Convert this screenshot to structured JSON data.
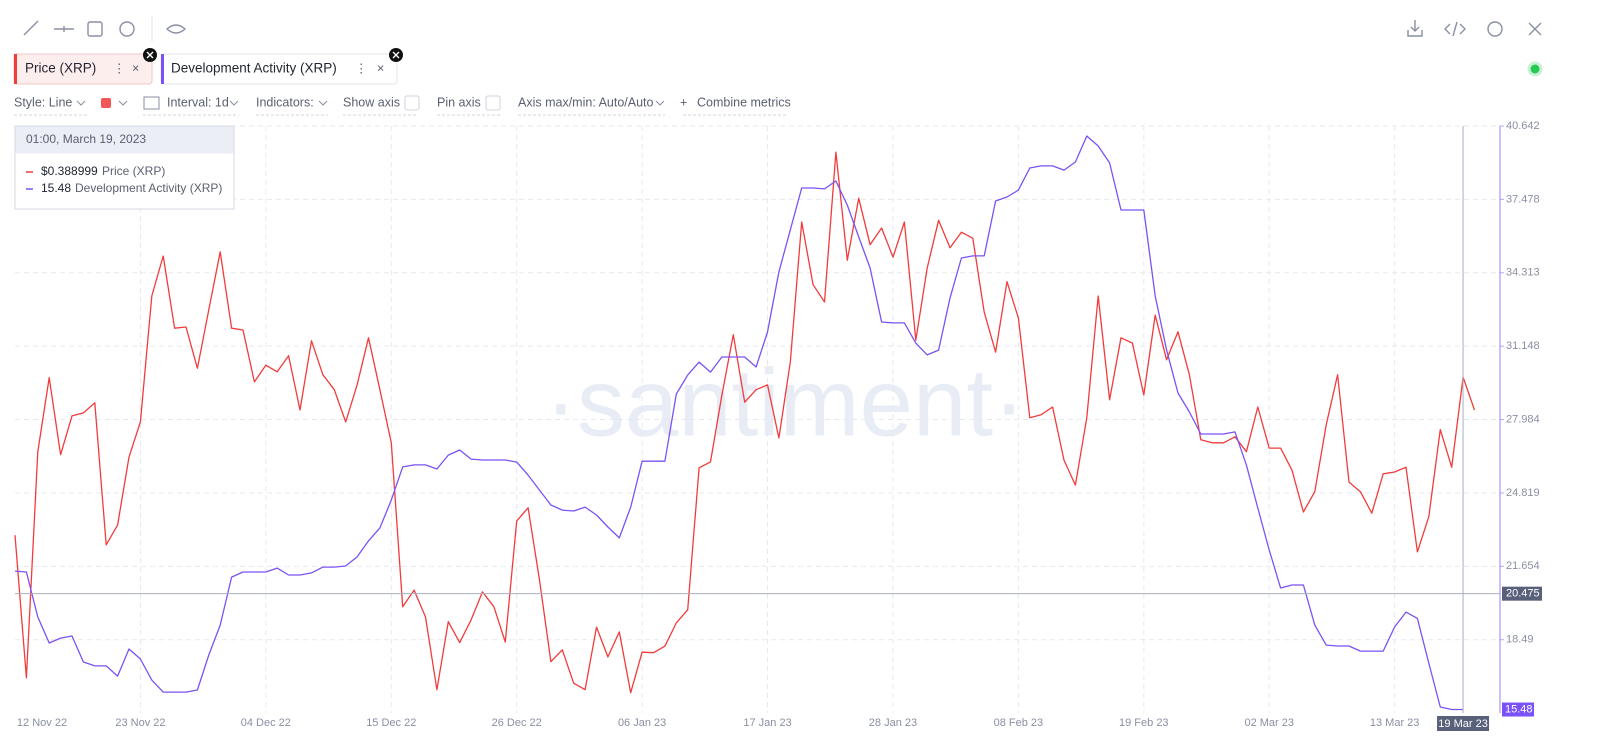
{
  "toolbar": {
    "style": "Style: Line",
    "interval": "Interval: 1d",
    "indicators": "Indicators:",
    "show_axis": "Show axis",
    "pin_axis": "Pin axis",
    "axis_minmax": "Axis max/min: Auto/Auto",
    "combine": "Combine metrics"
  },
  "watermark": "·santiment·",
  "chart_data": {
    "type": "line",
    "categories": [
      "12 Nov 22",
      null,
      null,
      null,
      null,
      null,
      null,
      null,
      null,
      null,
      null,
      "23 Nov 22",
      null,
      null,
      null,
      null,
      null,
      null,
      null,
      null,
      null,
      null,
      "04 Dec 22",
      null,
      null,
      null,
      null,
      null,
      null,
      null,
      null,
      null,
      null,
      "15 Dec 22",
      null,
      null,
      null,
      null,
      null,
      null,
      null,
      null,
      null,
      null,
      "26 Dec 22",
      null,
      null,
      null,
      null,
      null,
      null,
      null,
      null,
      null,
      null,
      "06 Jan 23",
      null,
      null,
      null,
      null,
      null,
      null,
      null,
      null,
      null,
      null,
      "17 Jan 23",
      null,
      null,
      null,
      null,
      null,
      null,
      null,
      null,
      null,
      null,
      "28 Jan 23",
      null,
      null,
      null,
      null,
      null,
      null,
      null,
      null,
      null,
      null,
      "08 Feb 23",
      null,
      null,
      null,
      null,
      null,
      null,
      null,
      null,
      null,
      null,
      "19 Feb 23",
      null,
      null,
      null,
      null,
      null,
      null,
      null,
      null,
      null,
      null,
      "02 Mar 23",
      null,
      null,
      null,
      null,
      null,
      null,
      null,
      null,
      null,
      null,
      "13 Mar 23",
      null,
      null,
      null,
      null,
      null,
      "19 Mar 23",
      null
    ],
    "ylim": [
      0.3327,
      0.4311
    ],
    "y2lim": [
      15.33,
      40.642
    ],
    "y2ticks": [
      40.642,
      37.478,
      34.313,
      31.148,
      27.984,
      24.819,
      21.654,
      18.49
    ],
    "grid": true,
    "series": [
      {
        "name": "Price (XRP)",
        "color": "#f23b3b",
        "axis": "y",
        "values": [
          0.3625,
          0.3386,
          0.3765,
          0.3889,
          0.376,
          0.3825,
          0.383,
          0.3847,
          0.3609,
          0.3642,
          0.3756,
          0.3815,
          0.4026,
          0.4093,
          0.3972,
          0.3974,
          0.3905,
          0.4003,
          0.41,
          0.3972,
          0.3969,
          0.3882,
          0.391,
          0.3899,
          0.3926,
          0.3835,
          0.3951,
          0.3894,
          0.3869,
          0.3815,
          0.3877,
          0.3956,
          0.3869,
          0.378,
          0.3505,
          0.3533,
          0.3488,
          0.3366,
          0.348,
          0.3445,
          0.3483,
          0.353,
          0.3505,
          0.3446,
          0.3649,
          0.3671,
          0.355,
          0.3413,
          0.3433,
          0.3377,
          0.3366,
          0.3471,
          0.3421,
          0.3463,
          0.3361,
          0.3429,
          0.3428,
          0.3439,
          0.3478,
          0.35,
          0.3738,
          0.3748,
          0.386,
          0.3961,
          0.3848,
          0.3869,
          0.3877,
          0.3788,
          0.3915,
          0.415,
          0.4045,
          0.4016,
          0.4267,
          0.4086,
          0.419,
          0.4112,
          0.414,
          0.4091,
          0.415,
          0.3952,
          0.4073,
          0.4153,
          0.4107,
          0.4133,
          0.4123,
          0.3999,
          0.3932,
          0.405,
          0.3989,
          0.3822,
          0.3827,
          0.384,
          0.3751,
          0.3709,
          0.3822,
          0.4026,
          0.3852,
          0.3956,
          0.3947,
          0.386,
          0.3994,
          0.3919,
          0.3966,
          0.3894,
          0.3785,
          0.378,
          0.378,
          0.379,
          0.3765,
          0.384,
          0.3771,
          0.3771,
          0.3734,
          0.3664,
          0.3698,
          0.381,
          0.3894,
          0.3714,
          0.3698,
          0.3662,
          0.3728,
          0.3731,
          0.3739,
          0.3597,
          0.3656,
          0.3802,
          0.3739,
          0.388999,
          0.3835
        ]
      },
      {
        "name": "Development Activity (XRP)",
        "color": "#7b52f5",
        "axis": "y2",
        "values": [
          21.45,
          21.41,
          19.47,
          18.35,
          18.56,
          18.65,
          17.53,
          17.36,
          17.36,
          16.92,
          18.09,
          17.66,
          16.75,
          16.23,
          16.23,
          16.23,
          16.32,
          17.83,
          19.12,
          21.19,
          21.41,
          21.41,
          21.41,
          21.58,
          21.28,
          21.28,
          21.37,
          21.62,
          21.62,
          21.67,
          22.06,
          22.75,
          23.31,
          24.51,
          25.94,
          26.03,
          26.03,
          25.85,
          26.45,
          26.67,
          26.28,
          26.24,
          26.24,
          26.24,
          26.15,
          25.59,
          24.94,
          24.3,
          24.08,
          24.04,
          24.21,
          23.87,
          23.35,
          22.88,
          24.21,
          26.19,
          26.19,
          26.19,
          29.08,
          29.9,
          30.46,
          30.03,
          30.68,
          30.68,
          30.68,
          30.25,
          31.76,
          34.35,
          36.16,
          37.97,
          37.97,
          37.93,
          38.27,
          37.23,
          35.86,
          34.52,
          32.19,
          32.15,
          32.15,
          31.28,
          30.77,
          30.98,
          33.22,
          34.95,
          35.04,
          35.04,
          37.41,
          37.58,
          37.88,
          38.83,
          38.92,
          38.92,
          38.74,
          39.09,
          40.21,
          39.78,
          39.05,
          37.02,
          37.02,
          37.02,
          33.31,
          30.98,
          29.13,
          28.31,
          27.36,
          27.36,
          27.36,
          27.45,
          26.02,
          24.17,
          22.36,
          20.72,
          20.85,
          20.85,
          19.12,
          18.26,
          18.22,
          18.22,
          18.0,
          18.0,
          18.0,
          19.04,
          19.68,
          19.41,
          17.48,
          15.59,
          15.48,
          15.48,
          null
        ]
      }
    ],
    "crosshair": {
      "x": "19 Mar 23",
      "y2": 20.475
    },
    "tooltip": {
      "title": "01:00, March 19, 2023",
      "price_label": "$0.388999"
    }
  }
}
